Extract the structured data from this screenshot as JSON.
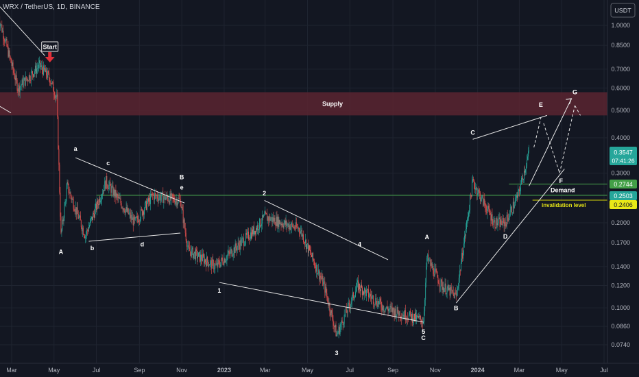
{
  "header": {
    "symbol_title": "WRX / TetherUS, 1D, BINANCE"
  },
  "currency_badge": "USDT",
  "price_badges": {
    "last": "0.3547",
    "countdown": "07:41:26",
    "demand_top": "0.2744",
    "demand_bottom": "0.2503",
    "invalidation": "0.2406"
  },
  "zones": {
    "supply_label": "Supply",
    "demand_label": "Demand",
    "invalidation_label": "invalidation level",
    "start_label": "Start"
  },
  "colors": {
    "background": "#131722",
    "up": "#26a69a",
    "down": "#ef5350",
    "supply": "#5a2530",
    "demand_line": "#4caf50",
    "invalidation_line": "#d4d40a",
    "start_arrow": "#e0303a"
  },
  "chart_data": {
    "type": "candlestick",
    "title": "WRX / TetherUS, 1D, BINANCE",
    "y_scale": "log",
    "ylim": [
      0.065,
      1.2
    ],
    "y_ticks": [
      1.0,
      0.85,
      0.7,
      0.6,
      0.5,
      0.4,
      0.3,
      0.25,
      0.2,
      0.17,
      0.14,
      0.12,
      0.1,
      0.086,
      0.074
    ],
    "y_tick_labels": [
      "1.0000",
      "0.8500",
      "0.7000",
      "0.6000",
      "0.5000",
      "0.4000",
      "0.3000",
      "0.2500",
      "0.2000",
      "0.1700",
      "0.1400",
      "0.1200",
      "0.1000",
      "0.0860",
      "0.0740"
    ],
    "x_range": [
      "2022-02-10",
      "2024-07-15"
    ],
    "x_ticks": [
      {
        "date": "2022-03-01",
        "label": "Mar"
      },
      {
        "date": "2022-05-01",
        "label": "May"
      },
      {
        "date": "2022-07-01",
        "label": "Jul"
      },
      {
        "date": "2022-09-01",
        "label": "Sep"
      },
      {
        "date": "2022-11-01",
        "label": "Nov"
      },
      {
        "date": "2023-01-01",
        "label": "2023"
      },
      {
        "date": "2023-03-01",
        "label": "Mar"
      },
      {
        "date": "2023-05-01",
        "label": "May"
      },
      {
        "date": "2023-07-01",
        "label": "Jul"
      },
      {
        "date": "2023-09-01",
        "label": "Sep"
      },
      {
        "date": "2023-11-01",
        "label": "Nov"
      },
      {
        "date": "2024-01-01",
        "label": "2024"
      },
      {
        "date": "2024-03-01",
        "label": "Mar"
      },
      {
        "date": "2024-05-01",
        "label": "May"
      },
      {
        "date": "2024-07-01",
        "label": "Jul"
      }
    ],
    "price_path": [
      [
        "2022-02-10",
        1.08
      ],
      [
        "2022-03-10",
        0.6
      ],
      [
        "2022-04-10",
        0.72
      ],
      [
        "2022-04-25",
        0.65
      ],
      [
        "2022-05-05",
        0.55
      ],
      [
        "2022-05-11",
        0.18
      ],
      [
        "2022-05-20",
        0.27
      ],
      [
        "2022-06-15",
        0.18
      ],
      [
        "2022-07-15",
        0.28
      ],
      [
        "2022-08-25",
        0.2
      ],
      [
        "2022-09-20",
        0.25
      ],
      [
        "2022-10-30",
        0.24
      ],
      [
        "2022-11-10",
        0.16
      ],
      [
        "2022-12-20",
        0.14
      ],
      [
        "2023-02-15",
        0.19
      ],
      [
        "2023-03-01",
        0.21
      ],
      [
        "2023-04-20",
        0.19
      ],
      [
        "2023-05-25",
        0.12
      ],
      [
        "2023-06-12",
        0.08
      ],
      [
        "2023-07-12",
        0.12
      ],
      [
        "2023-08-20",
        0.1
      ],
      [
        "2023-10-15",
        0.09
      ],
      [
        "2023-10-20",
        0.15
      ],
      [
        "2023-11-10",
        0.12
      ],
      [
        "2023-12-01",
        0.11
      ],
      [
        "2023-12-25",
        0.28
      ],
      [
        "2024-01-25",
        0.2
      ],
      [
        "2024-02-10",
        0.2
      ],
      [
        "2024-02-28",
        0.25
      ],
      [
        "2024-03-15",
        0.3547
      ]
    ],
    "zones": [
      {
        "name": "Supply",
        "from": 0.48,
        "to": 0.58
      },
      {
        "name": "Demand",
        "from": 0.2503,
        "to": 0.2744
      },
      {
        "name": "invalidation level",
        "value": 0.2406
      }
    ],
    "annotations": [
      {
        "text": "Start",
        "date": "2022-04-25",
        "price": 0.8
      },
      {
        "text": "A",
        "date": "2022-05-11",
        "price": 0.155
      },
      {
        "text": "a",
        "date": "2022-06-01",
        "price": 0.36
      },
      {
        "text": "b",
        "date": "2022-06-25",
        "price": 0.16
      },
      {
        "text": "c",
        "date": "2022-07-18",
        "price": 0.32
      },
      {
        "text": "d",
        "date": "2022-09-05",
        "price": 0.165
      },
      {
        "text": "B",
        "date": "2022-11-01",
        "price": 0.285
      },
      {
        "text": "e",
        "date": "2022-11-01",
        "price": 0.262
      },
      {
        "text": "1",
        "date": "2022-12-25",
        "price": 0.113
      },
      {
        "text": "2",
        "date": "2023-02-28",
        "price": 0.25
      },
      {
        "text": "3",
        "date": "2023-06-12",
        "price": 0.068
      },
      {
        "text": "4",
        "date": "2023-07-15",
        "price": 0.165
      },
      {
        "text": "5",
        "date": "2023-10-15",
        "price": 0.081
      },
      {
        "text": "C",
        "date": "2023-10-15",
        "price": 0.077
      },
      {
        "text": "A",
        "date": "2023-10-20",
        "price": 0.175
      },
      {
        "text": "B",
        "date": "2023-12-01",
        "price": 0.098
      },
      {
        "text": "C",
        "date": "2023-12-25",
        "price": 0.41
      },
      {
        "text": "D",
        "date": "2024-02-10",
        "price": 0.176
      },
      {
        "text": "E",
        "date": "2024-04-01",
        "price": 0.515
      },
      {
        "text": "F",
        "date": "2024-04-30",
        "price": 0.277
      },
      {
        "text": "G",
        "date": "2024-05-20",
        "price": 0.57
      }
    ]
  }
}
